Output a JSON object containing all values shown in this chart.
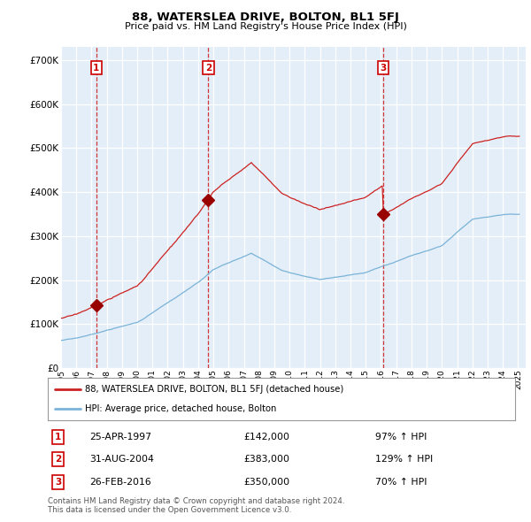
{
  "title": "88, WATERSLEA DRIVE, BOLTON, BL1 5FJ",
  "subtitle": "Price paid vs. HM Land Registry's House Price Index (HPI)",
  "legend_line1": "88, WATERSLEA DRIVE, BOLTON, BL1 5FJ (detached house)",
  "legend_line2": "HPI: Average price, detached house, Bolton",
  "footer1": "Contains HM Land Registry data © Crown copyright and database right 2024.",
  "footer2": "This data is licensed under the Open Government Licence v3.0.",
  "transactions": [
    {
      "num": 1,
      "date": "25-APR-1997",
      "price": 142000,
      "pct": "97%",
      "year": 1997.32
    },
    {
      "num": 2,
      "date": "31-AUG-2004",
      "price": 383000,
      "pct": "129%",
      "year": 2004.67
    },
    {
      "num": 3,
      "date": "26-FEB-2016",
      "price": 350000,
      "pct": "70%",
      "year": 2016.16
    }
  ],
  "hpi_color": "#7ab3d8",
  "price_color": "#cc2222",
  "dot_color": "#990000",
  "vline_color": "#cc2222",
  "bg_color": "#e4eef8",
  "grid_color": "#ffffff",
  "ylim": [
    0,
    730000
  ],
  "xlim_start": 1995.0,
  "xlim_end": 2025.5,
  "yticks": [
    0,
    100000,
    200000,
    300000,
    400000,
    500000,
    600000,
    700000
  ]
}
